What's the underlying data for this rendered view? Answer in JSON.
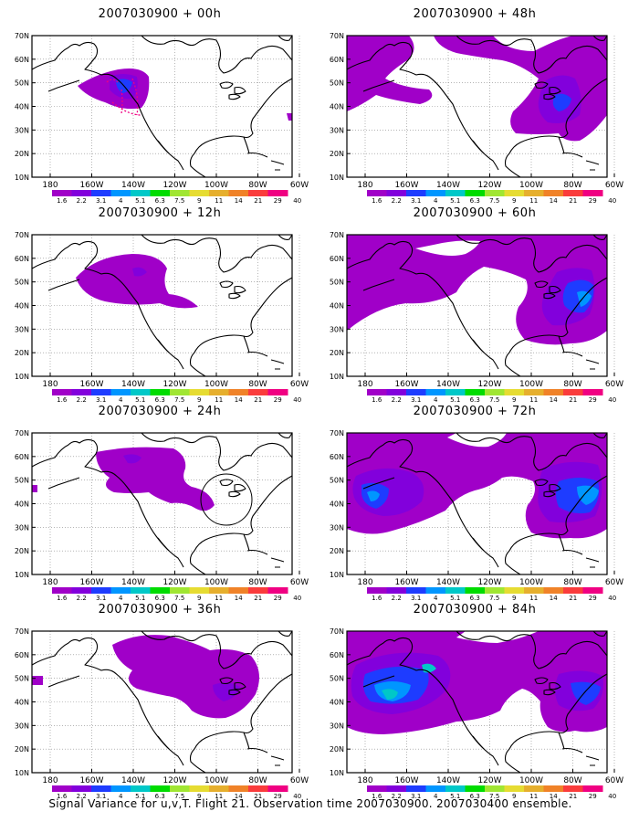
{
  "panels": [
    {
      "title": "2007030900 + 00h"
    },
    {
      "title": "2007030900 + 48h"
    },
    {
      "title": "2007030900 + 12h"
    },
    {
      "title": "2007030900 + 60h"
    },
    {
      "title": "2007030900 + 24h"
    },
    {
      "title": "2007030900 + 72h"
    },
    {
      "title": "2007030900 + 36h"
    },
    {
      "title": "2007030900 + 84h"
    }
  ],
  "lat_labels": [
    "70N",
    "60N",
    "50N",
    "40N",
    "30N",
    "20N",
    "10N"
  ],
  "lon_labels": [
    "180",
    "160W",
    "140W",
    "120W",
    "100W",
    "80W",
    "60W"
  ],
  "colorbar": {
    "labels": [
      "1.6",
      "2.2",
      "3.1",
      "4",
      "5.1",
      "6.3",
      "7.5",
      "9",
      "11",
      "14",
      "21",
      "29",
      "40"
    ],
    "colors": [
      "#a000c8",
      "#8200dc",
      "#1e3cff",
      "#0096ff",
      "#00c8c8",
      "#00dc00",
      "#a0e632",
      "#e6dc32",
      "#e6af2d",
      "#f08228",
      "#fa3c3c",
      "#f00082"
    ]
  },
  "caption": "Signal Variance for u,v,T. Flight 21. Observation time 2007030900. 2007030400 ensemble."
}
